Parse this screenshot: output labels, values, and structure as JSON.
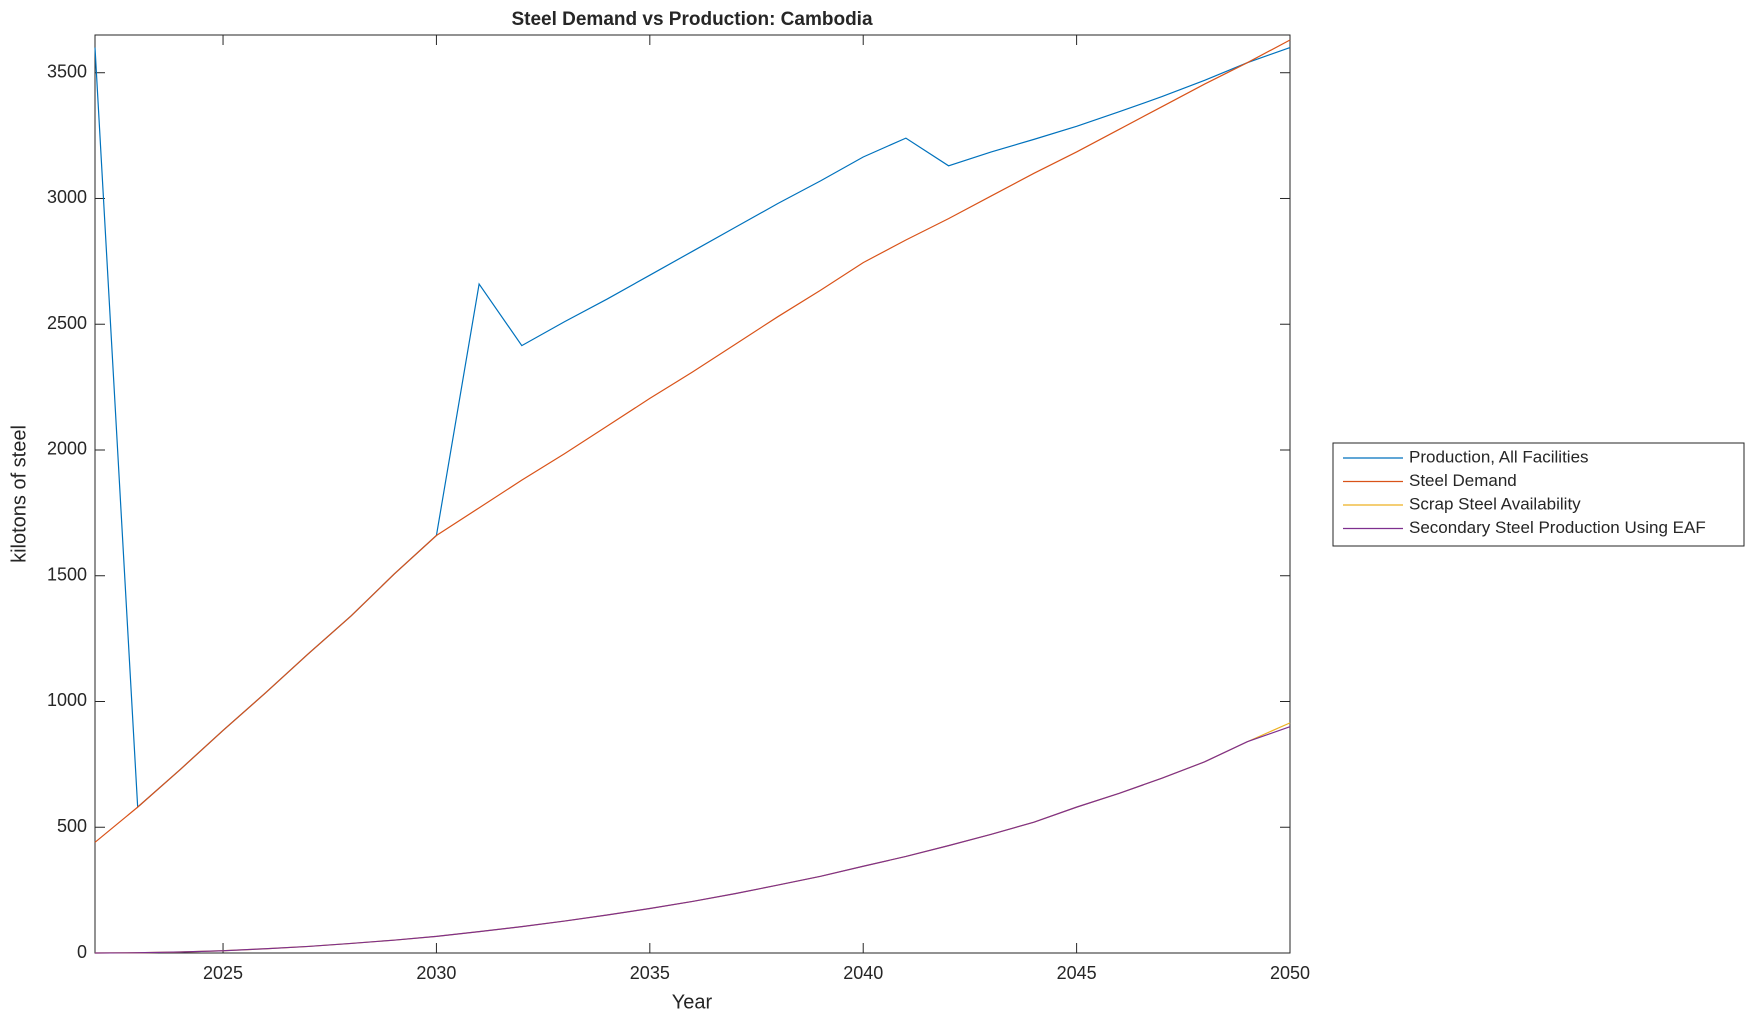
{
  "chart_data": {
    "type": "line",
    "title": "Steel Demand vs Production: Cambodia",
    "x_label": "Year",
    "y_label": "kilotons of steel",
    "x": [
      2022,
      2023,
      2024,
      2025,
      2026,
      2027,
      2028,
      2029,
      2030,
      2031,
      2032,
      2033,
      2034,
      2035,
      2036,
      2037,
      2038,
      2039,
      2040,
      2041,
      2042,
      2043,
      2044,
      2045,
      2046,
      2047,
      2048,
      2049,
      2050
    ],
    "series": [
      {
        "name": "Production, All Facilities",
        "color": "#0072bd",
        "values": [
          3600,
          580,
          730,
          885,
          1035,
          1190,
          1340,
          1505,
          1660,
          2660,
          2415,
          2510,
          2600,
          2695,
          2790,
          2885,
          2980,
          3070,
          3165,
          3240,
          3130,
          3185,
          3235,
          3287,
          3345,
          3405,
          3470,
          3540,
          3600
        ]
      },
      {
        "name": "Steel Demand",
        "color": "#d95319",
        "values": [
          440,
          580,
          730,
          885,
          1035,
          1190,
          1340,
          1505,
          1660,
          1770,
          1880,
          1985,
          2095,
          2205,
          2310,
          2420,
          2530,
          2635,
          2745,
          2835,
          2920,
          3010,
          3100,
          3185,
          3275,
          3365,
          3455,
          3540,
          3630
        ]
      },
      {
        "name": "Scrap Steel Availability",
        "color": "#edb120",
        "values": [
          0,
          1,
          4,
          9,
          17,
          26,
          38,
          51,
          66,
          85,
          105,
          127,
          151,
          177,
          205,
          236,
          270,
          305,
          345,
          384,
          427,
          472,
          520,
          580,
          635,
          695,
          760,
          840,
          915
        ]
      },
      {
        "name": "Secondary Steel Production Using EAF",
        "color": "#7e2f8e",
        "values": [
          0,
          1,
          4,
          9,
          17,
          26,
          38,
          51,
          66,
          85,
          105,
          127,
          151,
          177,
          205,
          236,
          270,
          305,
          345,
          384,
          427,
          472,
          520,
          580,
          635,
          695,
          760,
          840,
          900
        ]
      }
    ],
    "xlim": [
      2022,
      2050
    ],
    "ylim": [
      0,
      3650
    ],
    "xticks": [
      2025,
      2030,
      2035,
      2040,
      2045,
      2050
    ],
    "yticks": [
      0,
      500,
      1000,
      1500,
      2000,
      2500,
      3000,
      3500
    ],
    "legend": "east-outside",
    "grid": false
  }
}
